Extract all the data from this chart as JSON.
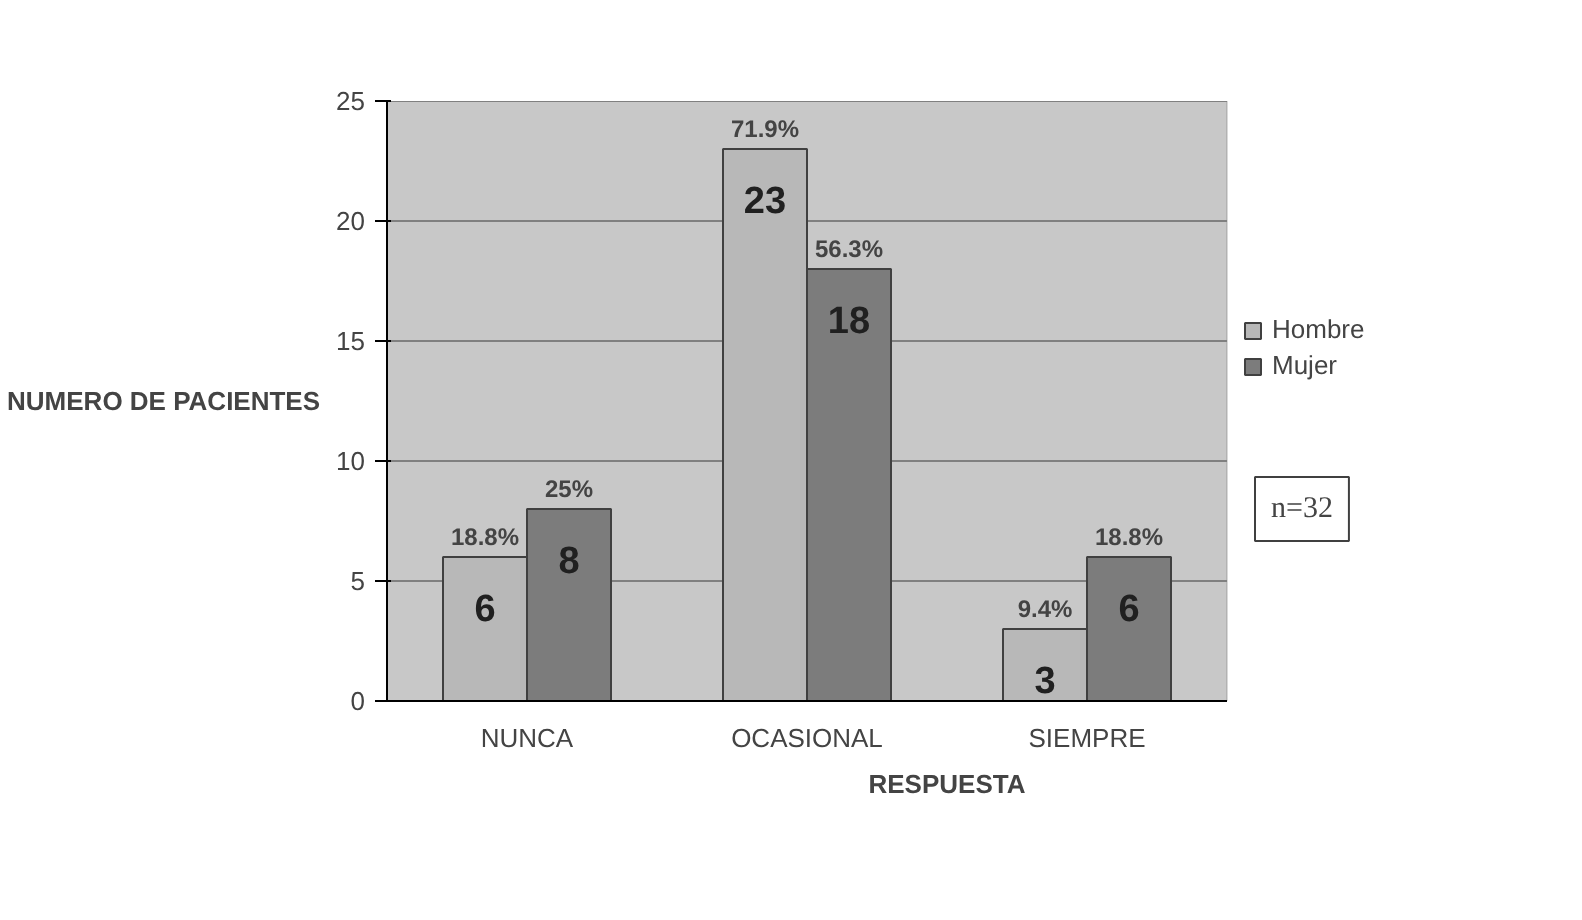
{
  "chart_data": {
    "type": "bar",
    "xlabel": "RESPUESTA",
    "ylabel": "NUMERO DE PACIENTES",
    "categories": [
      "NUNCA",
      "OCASIONAL",
      "SIEMPRE"
    ],
    "series": [
      {
        "name": "Hombre",
        "color": "#b8b8b8",
        "values": [
          6,
          23,
          3
        ]
      },
      {
        "name": "Mujer",
        "color": "#7c7c7c",
        "values": [
          8,
          18,
          6
        ]
      }
    ],
    "ylim": [
      0,
      25
    ],
    "yticks": [
      0,
      5,
      10,
      15,
      20,
      25
    ],
    "grid": "y",
    "legend": "right",
    "data_labels": true,
    "annotations": [
      {
        "text": "18.8%",
        "x": "NUNCA",
        "y": 6
      },
      {
        "text": "25%",
        "x": "NUNCA",
        "y": 8
      },
      {
        "text": "71.9%",
        "x": "OCASIONAL",
        "y": 23
      },
      {
        "text": "56.3%",
        "x": "OCASIONAL",
        "y": 18
      },
      {
        "text": "9.4%",
        "x": "SIEMPRE",
        "y": 3
      },
      {
        "text": "18.8%",
        "x": "SIEMPRE",
        "y": 6
      },
      "n=32"
    ]
  }
}
